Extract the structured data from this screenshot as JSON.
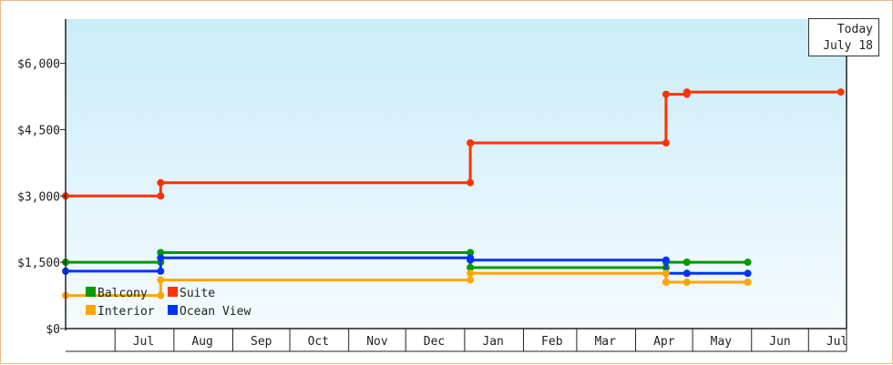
{
  "chart_data": {
    "type": "line",
    "step": true,
    "y_ticks": [
      "$0",
      "$1,500",
      "$3,000",
      "$4,500",
      "$6,000"
    ],
    "y_tick_values": [
      0,
      1500,
      3000,
      4500,
      6000
    ],
    "ylim": [
      0,
      7000
    ],
    "x_tick_labels": [
      "Jul",
      "Aug",
      "Sep",
      "Oct",
      "Nov",
      "Dec",
      "Jan",
      "Feb",
      "Mar",
      "Apr",
      "May",
      "Jun",
      "Jul"
    ],
    "x_tick_days": [
      15,
      46,
      77,
      107,
      138,
      168,
      199,
      230,
      258,
      289,
      319,
      350,
      380
    ],
    "x_boundary_days": [
      0,
      31,
      62,
      92,
      123,
      153,
      184,
      215,
      243,
      274,
      304,
      335,
      365,
      385
    ],
    "xlim_days": [
      -26,
      385
    ],
    "x_origin": "June 1",
    "annotation": {
      "line1": "Today",
      "line2": "July 18"
    },
    "today_day": 382,
    "series": [
      {
        "name": "Suite",
        "color": "#ff3300",
        "points": [
          [
            -26,
            3000
          ],
          [
            24,
            3000
          ],
          [
            24,
            3300
          ],
          [
            187,
            3300
          ],
          [
            187,
            4200
          ],
          [
            290,
            4200
          ],
          [
            290,
            5300
          ],
          [
            301,
            5300
          ],
          [
            301,
            5350
          ],
          [
            382,
            5350
          ]
        ]
      },
      {
        "name": "Balcony",
        "color": "#009900",
        "points": [
          [
            -26,
            1500
          ],
          [
            24,
            1500
          ],
          [
            24,
            1720
          ],
          [
            187,
            1720
          ],
          [
            187,
            1380
          ],
          [
            290,
            1380
          ],
          [
            290,
            1500
          ],
          [
            301,
            1500
          ],
          [
            301,
            1500
          ],
          [
            333,
            1500
          ]
        ]
      },
      {
        "name": "Ocean View",
        "color": "#0033ff",
        "points": [
          [
            -26,
            1300
          ],
          [
            24,
            1300
          ],
          [
            24,
            1600
          ],
          [
            187,
            1600
          ],
          [
            187,
            1550
          ],
          [
            290,
            1550
          ],
          [
            290,
            1250
          ],
          [
            301,
            1250
          ],
          [
            301,
            1250
          ],
          [
            333,
            1250
          ]
        ]
      },
      {
        "name": "Interior",
        "color": "#ffa500",
        "points": [
          [
            -26,
            750
          ],
          [
            24,
            750
          ],
          [
            24,
            1100
          ],
          [
            187,
            1100
          ],
          [
            187,
            1250
          ],
          [
            290,
            1250
          ],
          [
            290,
            1050
          ],
          [
            301,
            1050
          ],
          [
            301,
            1050
          ],
          [
            333,
            1050
          ]
        ]
      }
    ],
    "legend": [
      {
        "name": "Balcony",
        "color": "#009900"
      },
      {
        "name": "Suite",
        "color": "#ff3300"
      },
      {
        "name": "Interior",
        "color": "#ffa500"
      },
      {
        "name": "Ocean View",
        "color": "#0033ff"
      }
    ],
    "legend_position": "bottom-left",
    "background_gradient": [
      "#c9ecf9",
      "#f5fbfe"
    ]
  }
}
